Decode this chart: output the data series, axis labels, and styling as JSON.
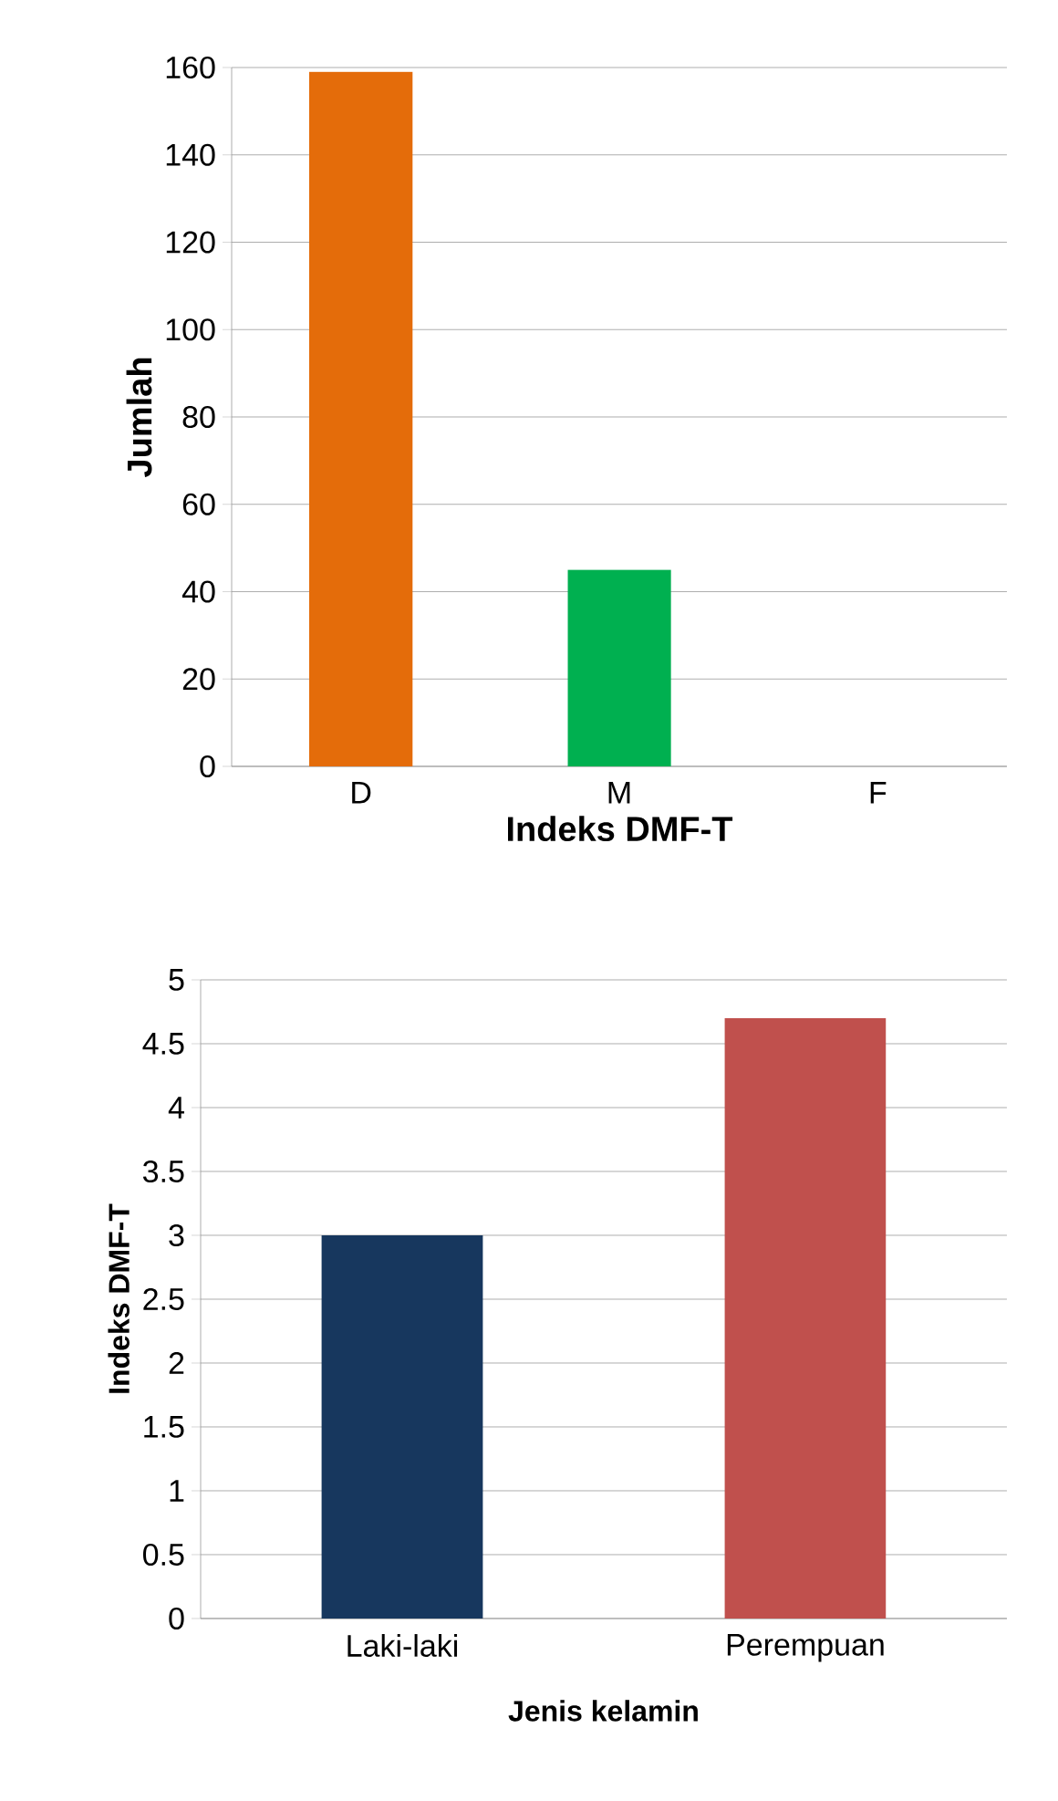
{
  "chart_data": [
    {
      "type": "bar",
      "categories": [
        "D",
        "M",
        "F"
      ],
      "values": [
        159,
        45,
        0
      ],
      "colors": [
        "#e46c0a",
        "#00b050",
        "#4f81bd"
      ],
      "xlabel": "Indeks DMF-T",
      "ylabel": "Jumlah",
      "ylim": [
        0,
        160
      ],
      "yticks": [
        0,
        20,
        40,
        60,
        80,
        100,
        120,
        140,
        160
      ],
      "grid": "y"
    },
    {
      "type": "bar",
      "categories": [
        "Laki-laki",
        "Perempuan"
      ],
      "values": [
        3,
        4.7
      ],
      "colors": [
        "#17375e",
        "#c0504d"
      ],
      "xlabel": "Jenis kelamin",
      "ylabel": "Indeks DMF-T",
      "ylim": [
        0,
        5
      ],
      "yticks": [
        0,
        0.5,
        1,
        1.5,
        2,
        2.5,
        3,
        3.5,
        4,
        4.5,
        5
      ],
      "grid": "y"
    }
  ]
}
